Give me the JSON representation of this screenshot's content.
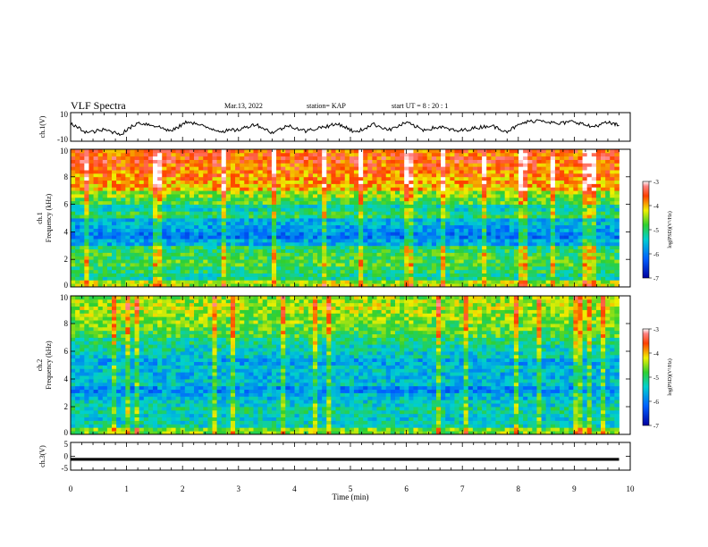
{
  "header": {
    "title": "VLF Spectra",
    "date": "Mar.13, 2022",
    "station": "station= KAP",
    "start": "start  UT =   8  : 20 : 1"
  },
  "chart_data": [
    {
      "type": "line",
      "panel": "ch1-waveform",
      "ylabel": "ch.1(V)",
      "ylim": [
        -10,
        10
      ],
      "yticks": [
        "10",
        "-10"
      ],
      "xlim": [
        0,
        10
      ],
      "x": [
        0,
        0.3,
        0.6,
        0.9,
        1.2,
        1.5,
        1.8,
        2.1,
        2.4,
        2.7,
        3.0,
        3.3,
        3.6,
        3.9,
        4.2,
        4.5,
        4.8,
        5.1,
        5.4,
        5.7,
        6.0,
        6.3,
        6.6,
        6.9,
        7.2,
        7.5,
        7.8,
        8.1,
        8.4,
        8.7,
        9.0,
        9.3,
        9.6,
        9.8
      ],
      "values": [
        2,
        -4,
        -2,
        -5,
        3,
        1,
        -3,
        4,
        0,
        -3,
        -2,
        2,
        -4,
        1,
        -3,
        0,
        2,
        -4,
        2,
        -2,
        3,
        -2,
        0,
        -3,
        -1,
        1,
        -3,
        3,
        5,
        2,
        4,
        0,
        3,
        1
      ],
      "series": [
        {
          "name": "",
          "color": "#000000"
        }
      ]
    },
    {
      "type": "heatmap",
      "panel": "ch1-spectrogram",
      "ylabel": "ch.1\nFrequency (kHz)",
      "ylim": [
        0,
        10
      ],
      "yticks": [
        "0",
        "2",
        "4",
        "6",
        "8",
        "10"
      ],
      "xlim": [
        0,
        10
      ],
      "colorbar": {
        "label": "log(PSD)(V²/Hz)",
        "min": -7,
        "max": -3,
        "ticks": [
          "-3",
          "-4",
          "-5",
          "-6",
          "-7"
        ]
      },
      "freq_bands_khz": [
        0,
        0.5,
        1,
        1.5,
        2,
        2.5,
        3,
        3.5,
        4,
        4.5,
        5,
        5.5,
        6,
        6.5,
        7,
        7.5,
        8,
        8.5,
        9,
        9.5
      ],
      "band_mean_log_psd": [
        -4.4,
        -5.2,
        -5.0,
        -4.8,
        -4.9,
        -5.0,
        -5.7,
        -6.0,
        -5.8,
        -5.6,
        -5.0,
        -5.3,
        -4.8,
        -4.5,
        -4.0,
        -3.9,
        -3.8,
        -3.7,
        -3.6,
        -3.7
      ]
    },
    {
      "type": "heatmap",
      "panel": "ch2-spectrogram",
      "ylabel": "ch.2\nFrequency (kHz)",
      "ylim": [
        0,
        10
      ],
      "yticks": [
        "0",
        "2",
        "4",
        "6",
        "8",
        "10"
      ],
      "xlim": [
        0,
        10
      ],
      "colorbar": {
        "label": "log(PSD)(V²/Hz)",
        "min": -7,
        "max": -3,
        "ticks": [
          "-3",
          "-4",
          "-5",
          "-6",
          "-7"
        ]
      },
      "freq_bands_khz": [
        0,
        0.5,
        1,
        1.5,
        2,
        2.5,
        3,
        3.5,
        4,
        4.5,
        5,
        5.5,
        6,
        6.5,
        7,
        7.5,
        8,
        8.5,
        9,
        9.5
      ],
      "band_mean_log_psd": [
        -4.6,
        -5.3,
        -5.4,
        -5.2,
        -5.4,
        -5.6,
        -5.9,
        -5.5,
        -5.6,
        -5.5,
        -5.7,
        -5.4,
        -5.3,
        -5.1,
        -4.8,
        -4.7,
        -4.6,
        -4.5,
        -4.4,
        -4.5
      ]
    },
    {
      "type": "line",
      "panel": "ch3-waveform",
      "ylabel": "ch.3(V)",
      "ylim": [
        -5,
        5
      ],
      "yticks": [
        "5",
        "0",
        "-5"
      ],
      "xlim": [
        0,
        10
      ],
      "xlabel": "Time (min)",
      "xticks": [
        "0",
        "1",
        "2",
        "3",
        "4",
        "5",
        "6",
        "7",
        "8",
        "9",
        "10"
      ],
      "x": [
        0,
        9.8
      ],
      "values": [
        -1,
        -1
      ],
      "series": [
        {
          "name": "",
          "color": "#000000"
        }
      ]
    }
  ]
}
